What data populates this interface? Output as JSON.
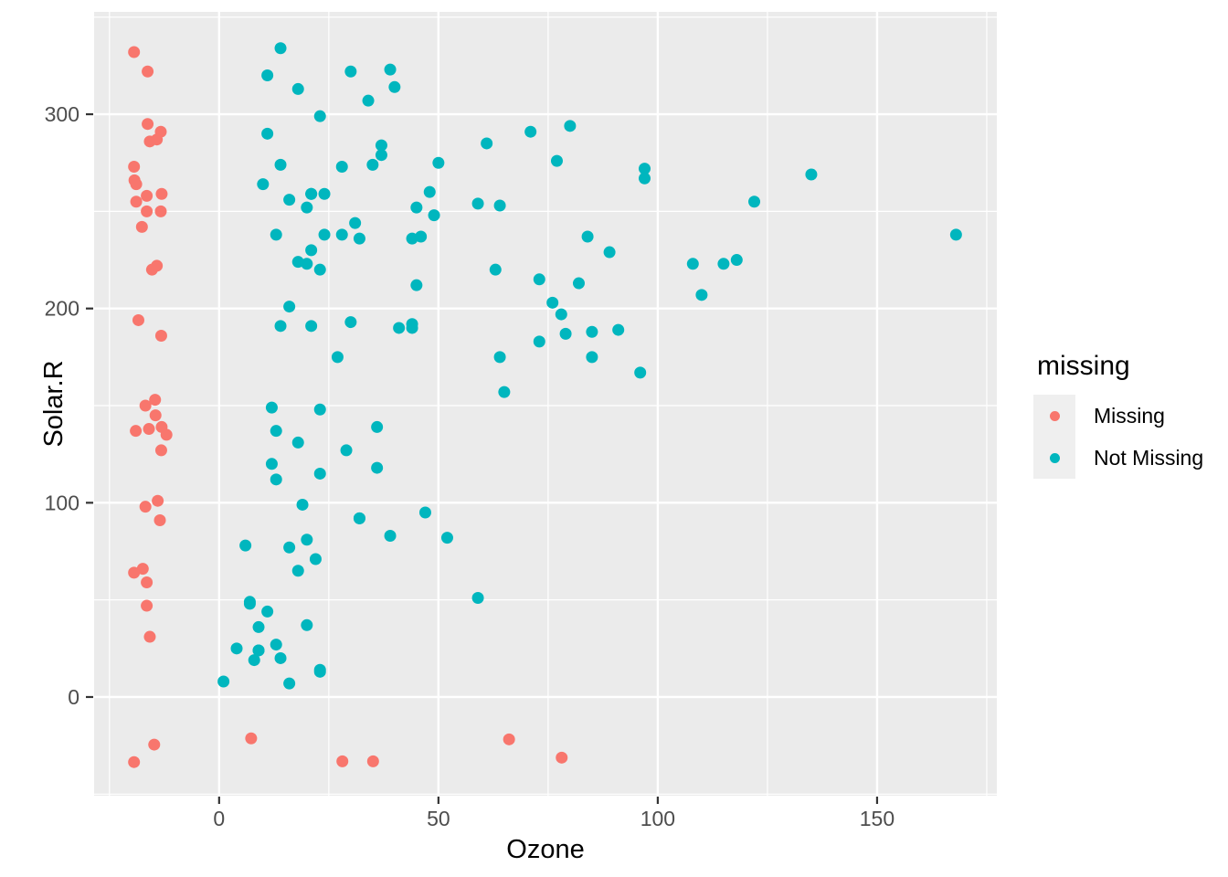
{
  "chart_data": {
    "type": "scatter",
    "xlabel": "Ozone",
    "ylabel": "Solar.R",
    "x_ticks": [
      0,
      50,
      100,
      150
    ],
    "x_minor_ticks": [
      -25,
      25,
      75,
      125,
      175
    ],
    "y_ticks": [
      0,
      100,
      200,
      300
    ],
    "y_minor_ticks": [
      -50,
      50,
      150,
      250,
      350
    ],
    "xlim": [
      -28.5,
      177.3
    ],
    "ylim": [
      -50.8,
      352.7
    ],
    "grid": true,
    "legend_position": "right",
    "legend": {
      "title": "missing",
      "items": [
        {
          "label": "Missing",
          "color": "#F8766D"
        },
        {
          "label": "Not Missing",
          "color": "#00B6BE"
        }
      ]
    },
    "colors": {
      "panel_bg": "#EBEBEB",
      "grid": "#FFFFFF",
      "tick_mark": "#333333",
      "tick_label": "#4D4D4D",
      "axis_title": "#000000",
      "legend_key_bg": "#EFEFEF"
    },
    "series": [
      {
        "name": "Not Missing",
        "color": "#00B6BE",
        "points": [
          [
            41,
            190
          ],
          [
            36,
            118
          ],
          [
            12,
            149
          ],
          [
            18,
            313
          ],
          [
            23,
            299
          ],
          [
            19,
            99
          ],
          [
            8,
            19
          ],
          [
            16,
            256
          ],
          [
            11,
            290
          ],
          [
            14,
            274
          ],
          [
            18,
            65
          ],
          [
            14,
            334
          ],
          [
            34,
            307
          ],
          [
            6,
            78
          ],
          [
            30,
            322
          ],
          [
            11,
            44
          ],
          [
            1,
            8
          ],
          [
            11,
            320
          ],
          [
            4,
            25
          ],
          [
            32,
            92
          ],
          [
            23,
            13
          ],
          [
            45,
            252
          ],
          [
            115,
            223
          ],
          [
            37,
            279
          ],
          [
            29,
            127
          ],
          [
            71,
            291
          ],
          [
            39,
            323
          ],
          [
            23,
            148
          ],
          [
            21,
            191
          ],
          [
            37,
            284
          ],
          [
            20,
            37
          ],
          [
            12,
            120
          ],
          [
            13,
            137
          ],
          [
            135,
            269
          ],
          [
            49,
            248
          ],
          [
            32,
            236
          ],
          [
            64,
            175
          ],
          [
            40,
            314
          ],
          [
            77,
            276
          ],
          [
            97,
            267
          ],
          [
            97,
            272
          ],
          [
            85,
            175
          ],
          [
            10,
            264
          ],
          [
            27,
            175
          ],
          [
            7,
            48
          ],
          [
            48,
            260
          ],
          [
            35,
            274
          ],
          [
            61,
            285
          ],
          [
            79,
            187
          ],
          [
            63,
            220
          ],
          [
            16,
            7
          ],
          [
            80,
            294
          ],
          [
            108,
            223
          ],
          [
            20,
            81
          ],
          [
            52,
            82
          ],
          [
            82,
            213
          ],
          [
            50,
            275
          ],
          [
            64,
            253
          ],
          [
            59,
            254
          ],
          [
            39,
            83
          ],
          [
            9,
            24
          ],
          [
            16,
            77
          ],
          [
            122,
            255
          ],
          [
            89,
            229
          ],
          [
            110,
            207
          ],
          [
            44,
            192
          ],
          [
            28,
            273
          ],
          [
            65,
            157
          ],
          [
            22,
            71
          ],
          [
            59,
            51
          ],
          [
            23,
            115
          ],
          [
            31,
            244
          ],
          [
            44,
            190
          ],
          [
            21,
            259
          ],
          [
            9,
            36
          ],
          [
            45,
            212
          ],
          [
            168,
            238
          ],
          [
            73,
            215
          ],
          [
            76,
            203
          ],
          [
            118,
            225
          ],
          [
            84,
            237
          ],
          [
            85,
            188
          ],
          [
            96,
            167
          ],
          [
            78,
            197
          ],
          [
            73,
            183
          ],
          [
            91,
            189
          ],
          [
            47,
            95
          ],
          [
            32,
            92
          ],
          [
            20,
            252
          ],
          [
            23,
            220
          ],
          [
            21,
            230
          ],
          [
            24,
            259
          ],
          [
            44,
            236
          ],
          [
            21,
            259
          ],
          [
            28,
            238
          ],
          [
            9,
            24
          ],
          [
            13,
            112
          ],
          [
            46,
            237
          ],
          [
            18,
            224
          ],
          [
            13,
            27
          ],
          [
            24,
            238
          ],
          [
            16,
            201
          ],
          [
            13,
            238
          ],
          [
            23,
            14
          ],
          [
            36,
            139
          ],
          [
            7,
            49
          ],
          [
            14,
            20
          ],
          [
            30,
            193
          ],
          [
            14,
            191
          ],
          [
            18,
            131
          ],
          [
            20,
            223
          ]
        ]
      },
      {
        "name": "Missing",
        "color": "#F8766D",
        "points": [
          [
            -19.4,
            332
          ],
          [
            -16.3,
            322
          ],
          [
            -16.3,
            295
          ],
          [
            -13.3,
            291
          ],
          [
            -15.8,
            286
          ],
          [
            -14.2,
            287
          ],
          [
            -19.4,
            273
          ],
          [
            -19.3,
            266
          ],
          [
            -18.9,
            264
          ],
          [
            -16.5,
            258
          ],
          [
            -18.9,
            255
          ],
          [
            -13.1,
            259
          ],
          [
            -16.5,
            250
          ],
          [
            -13.3,
            250
          ],
          [
            -17.6,
            242
          ],
          [
            -15.3,
            220
          ],
          [
            -14.2,
            222
          ],
          [
            -18.4,
            194
          ],
          [
            -13.2,
            186
          ],
          [
            -14.6,
            153
          ],
          [
            -16.8,
            150
          ],
          [
            -14.5,
            145
          ],
          [
            -19.0,
            137
          ],
          [
            -16.0,
            138
          ],
          [
            -13.1,
            139
          ],
          [
            -12.0,
            135
          ],
          [
            -13.2,
            127
          ],
          [
            -14.0,
            101
          ],
          [
            -16.8,
            98
          ],
          [
            -13.5,
            91
          ],
          [
            -17.4,
            66
          ],
          [
            -19.4,
            64
          ],
          [
            -16.5,
            59
          ],
          [
            -16.5,
            47
          ],
          [
            -15.8,
            31
          ],
          [
            7.3,
            -21.3
          ],
          [
            28.1,
            -33.1
          ],
          [
            35.1,
            -33.1
          ],
          [
            66.1,
            -21.8
          ],
          [
            78.1,
            -31.2
          ],
          [
            -14.8,
            -24.5
          ],
          [
            -19.4,
            -33.5
          ]
        ]
      }
    ]
  }
}
